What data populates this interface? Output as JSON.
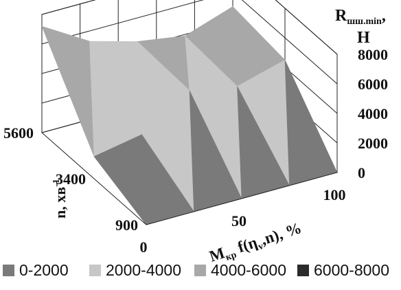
{
  "chart_data": {
    "type": "surface",
    "title": "",
    "z_label": {
      "main": "R",
      "sub": "шш.min",
      "suffix": ",",
      "unit": "Н"
    },
    "y_label": {
      "main": "n, хв",
      "sup": "-1"
    },
    "x_label": {
      "main": "M",
      "sub": "кр",
      "rest": " f(η",
      "sub2": "v",
      "rest2": ",n), %"
    },
    "x_ticks": [
      "0",
      "50",
      "100"
    ],
    "y_ticks": [
      "900",
      "3400",
      "5600"
    ],
    "z_ticks": [
      "0",
      "2000",
      "4000",
      "6000",
      "8000"
    ],
    "x_values": [
      0,
      25,
      50,
      75,
      100
    ],
    "y_values": [
      900,
      3400,
      5600
    ],
    "zlim": [
      0,
      8000
    ],
    "values": [
      [
        0,
        0,
        0,
        0,
        0
      ],
      [
        1500,
        2100,
        4200,
        3600,
        4500
      ],
      [
        7200,
        5300,
        4400,
        3900,
        5000
      ]
    ],
    "legend": [
      {
        "label": "0-2000",
        "color": "#7a7a7a"
      },
      {
        "label": "2000-4000",
        "color": "#c7c7c7"
      },
      {
        "label": "4000-6000",
        "color": "#a8a8a8"
      },
      {
        "label": "6000-8000",
        "color": "#2b2b2b"
      }
    ],
    "grid": true,
    "legend_position": "bottom"
  }
}
